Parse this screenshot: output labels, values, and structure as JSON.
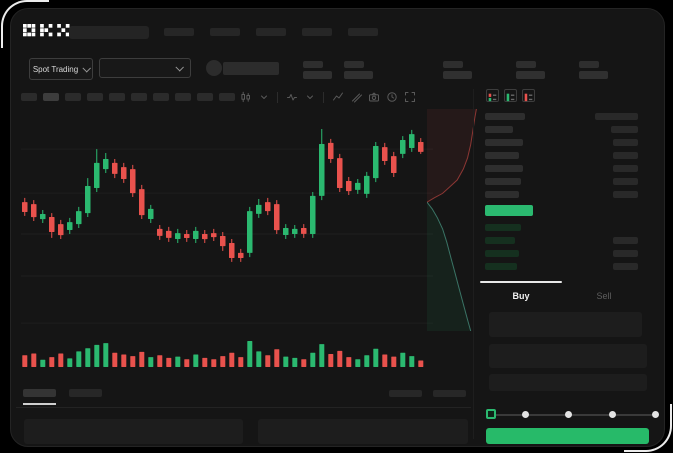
{
  "colors": {
    "green": "#2bb970",
    "red": "#e9524d",
    "button_green": "#27ba69",
    "window_bg": "#151515",
    "tab_indicator": "#e8e8e8"
  },
  "header": {
    "logo": "OKX",
    "nav_placeholder_count": 5,
    "stat_placeholder_count": 5
  },
  "market_bar": {
    "pair_selector_label": "Spot Trading"
  },
  "toolbar": {
    "timeframe_count": 10,
    "active_timeframe_index": 1,
    "icons": [
      "candles",
      "chevron-down",
      "divider",
      "indicators",
      "chevron-down",
      "divider",
      "line",
      "measure",
      "camera",
      "settings",
      "fullscreen"
    ]
  },
  "chart_data": {
    "type": "candlestick",
    "title": "",
    "xlabel": "",
    "ylabel": "",
    "ylim": [
      0,
      100
    ],
    "grid": "horizontal",
    "gridlines_v": [
      82.7,
      62.7,
      44.1,
      25.0,
      3.6
    ],
    "candles": [
      [
        58.6,
        60.5,
        52.3,
        54.1
      ],
      [
        57.7,
        59.5,
        50.0,
        51.8
      ],
      [
        50.9,
        55.0,
        49.1,
        53.2
      ],
      [
        51.8,
        53.6,
        42.3,
        45.0
      ],
      [
        48.6,
        50.5,
        41.8,
        43.6
      ],
      [
        45.9,
        51.4,
        44.1,
        49.5
      ],
      [
        48.6,
        56.4,
        46.8,
        54.5
      ],
      [
        53.6,
        69.5,
        51.8,
        65.9
      ],
      [
        65.0,
        82.7,
        63.2,
        76.4
      ],
      [
        73.6,
        80.9,
        71.8,
        78.2
      ],
      [
        76.4,
        78.2,
        69.5,
        71.4
      ],
      [
        74.5,
        76.4,
        67.3,
        69.1
      ],
      [
        73.6,
        75.5,
        60.9,
        62.7
      ],
      [
        64.5,
        66.4,
        50.9,
        52.7
      ],
      [
        50.9,
        57.3,
        49.1,
        55.5
      ],
      [
        46.4,
        48.2,
        41.4,
        43.2
      ],
      [
        45.5,
        47.3,
        40.5,
        42.3
      ],
      [
        41.8,
        46.4,
        40.0,
        44.5
      ],
      [
        44.1,
        45.9,
        40.5,
        42.3
      ],
      [
        41.8,
        47.3,
        40.0,
        45.5
      ],
      [
        44.1,
        45.9,
        40.0,
        41.8
      ],
      [
        44.5,
        46.4,
        40.9,
        42.7
      ],
      [
        43.2,
        45.0,
        36.4,
        38.6
      ],
      [
        40.0,
        41.8,
        31.4,
        33.2
      ],
      [
        35.5,
        37.3,
        31.4,
        33.2
      ],
      [
        35.5,
        56.4,
        33.6,
        54.5
      ],
      [
        53.2,
        60.0,
        51.4,
        57.3
      ],
      [
        58.6,
        60.5,
        52.7,
        54.5
      ],
      [
        57.7,
        59.5,
        44.1,
        45.9
      ],
      [
        43.6,
        48.6,
        41.8,
        46.8
      ],
      [
        44.1,
        48.2,
        42.3,
        46.4
      ],
      [
        46.8,
        48.6,
        42.3,
        44.1
      ],
      [
        44.1,
        63.2,
        42.3,
        61.4
      ],
      [
        61.4,
        91.8,
        59.5,
        85.0
      ],
      [
        85.5,
        87.3,
        76.4,
        78.2
      ],
      [
        78.6,
        80.5,
        63.2,
        65.0
      ],
      [
        68.2,
        70.0,
        61.8,
        63.6
      ],
      [
        64.1,
        69.1,
        62.3,
        67.3
      ],
      [
        62.3,
        72.3,
        60.5,
        70.5
      ],
      [
        69.5,
        85.9,
        67.7,
        84.1
      ],
      [
        83.6,
        85.5,
        75.5,
        77.3
      ],
      [
        79.5,
        81.4,
        70.0,
        71.8
      ],
      [
        80.5,
        88.6,
        78.6,
        86.8
      ],
      [
        83.2,
        91.4,
        81.4,
        89.5
      ],
      [
        85.9,
        87.7,
        80.5,
        81.4
      ]
    ],
    "volume": [
      45,
      52,
      28,
      38,
      52,
      33,
      60,
      72,
      85,
      92,
      55,
      48,
      42,
      58,
      38,
      45,
      35,
      40,
      30,
      48,
      35,
      30,
      42,
      55,
      38,
      100,
      60,
      45,
      68,
      40,
      35,
      30,
      55,
      88,
      50,
      62,
      38,
      30,
      45,
      70,
      48,
      40,
      55,
      42,
      25
    ],
    "depth": {
      "asks": [
        [
          0.95,
          0.0
        ],
        [
          0.92,
          0.04
        ],
        [
          0.88,
          0.1
        ],
        [
          0.84,
          0.16
        ],
        [
          0.78,
          0.22
        ],
        [
          0.7,
          0.27
        ],
        [
          0.58,
          0.32
        ],
        [
          0.44,
          0.35
        ],
        [
          0.3,
          0.38
        ],
        [
          0.14,
          0.4
        ],
        [
          0.0,
          0.42
        ]
      ],
      "bids": [
        [
          0.0,
          0.42
        ],
        [
          0.1,
          0.45
        ],
        [
          0.2,
          0.49
        ],
        [
          0.3,
          0.54
        ],
        [
          0.38,
          0.6
        ],
        [
          0.46,
          0.67
        ],
        [
          0.54,
          0.74
        ],
        [
          0.62,
          0.81
        ],
        [
          0.7,
          0.88
        ],
        [
          0.78,
          0.95
        ],
        [
          0.84,
          1.0
        ]
      ]
    }
  },
  "order_book": {
    "view_icons": [
      "book-combined",
      "book-bids-only",
      "book-asks-only"
    ],
    "asks": [
      [
        40,
        43
      ],
      [
        28,
        27
      ],
      [
        38,
        25
      ],
      [
        34,
        25
      ],
      [
        38,
        25
      ],
      [
        36,
        25
      ],
      [
        34,
        25
      ]
    ],
    "last_price_bar_width": 48,
    "bids": [
      [
        36,
        0
      ],
      [
        30,
        25
      ],
      [
        34,
        25
      ],
      [
        32,
        25
      ]
    ]
  },
  "trade_panel": {
    "tabs": {
      "buy": "Buy",
      "sell": "Sell"
    },
    "active_tab": "Buy",
    "input_count": 3,
    "slider": {
      "value_percent": 0,
      "stops": 5
    }
  },
  "bottom_panel": {
    "tab_count": 2,
    "active_tab_index": 0,
    "filter_placeholder_count": 2,
    "panel_count": 2
  }
}
